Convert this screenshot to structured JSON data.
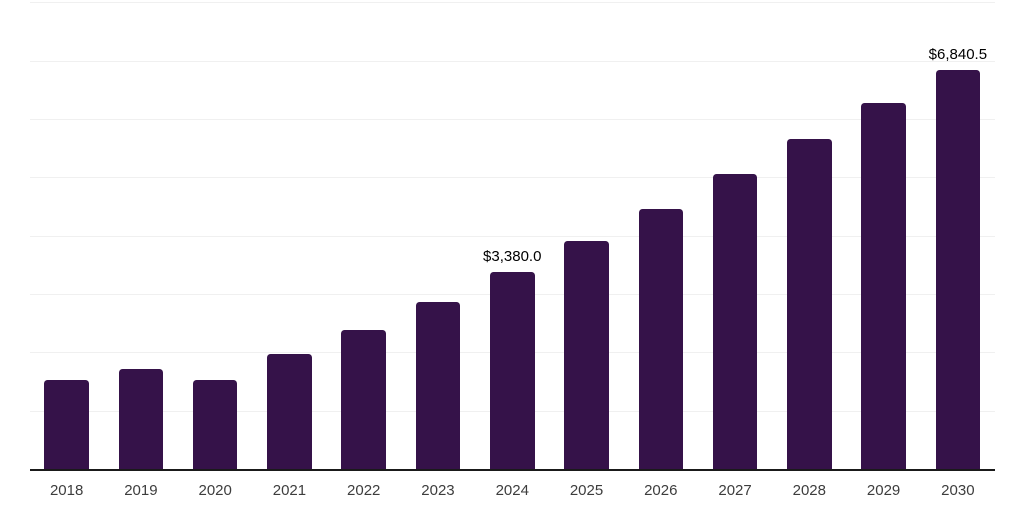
{
  "chart_data": {
    "type": "bar",
    "title": "",
    "xlabel": "",
    "ylabel": "",
    "categories": [
      "2018",
      "2019",
      "2020",
      "2021",
      "2022",
      "2023",
      "2024",
      "2025",
      "2026",
      "2027",
      "2028",
      "2029",
      "2030"
    ],
    "values": [
      1520,
      1720,
      1520,
      1980,
      2390,
      2860,
      3380,
      3910,
      4460,
      5050,
      5650,
      6270,
      6840.5
    ],
    "value_labels": [
      "",
      "",
      "",
      "",
      "",
      "",
      "$3,380.0",
      "",
      "",
      "",
      "",
      "",
      "$6,840.5"
    ],
    "ylim": [
      0,
      8000
    ],
    "gridline_step": 1000,
    "grid": true,
    "legend_position": "none",
    "colors": {
      "bar": "#351249",
      "axis_line": "#1a1a1a",
      "gridline": "#f0f0f0",
      "value_label": "#000000",
      "tick_label": "#3d3d3d",
      "background": "#ffffff"
    }
  }
}
